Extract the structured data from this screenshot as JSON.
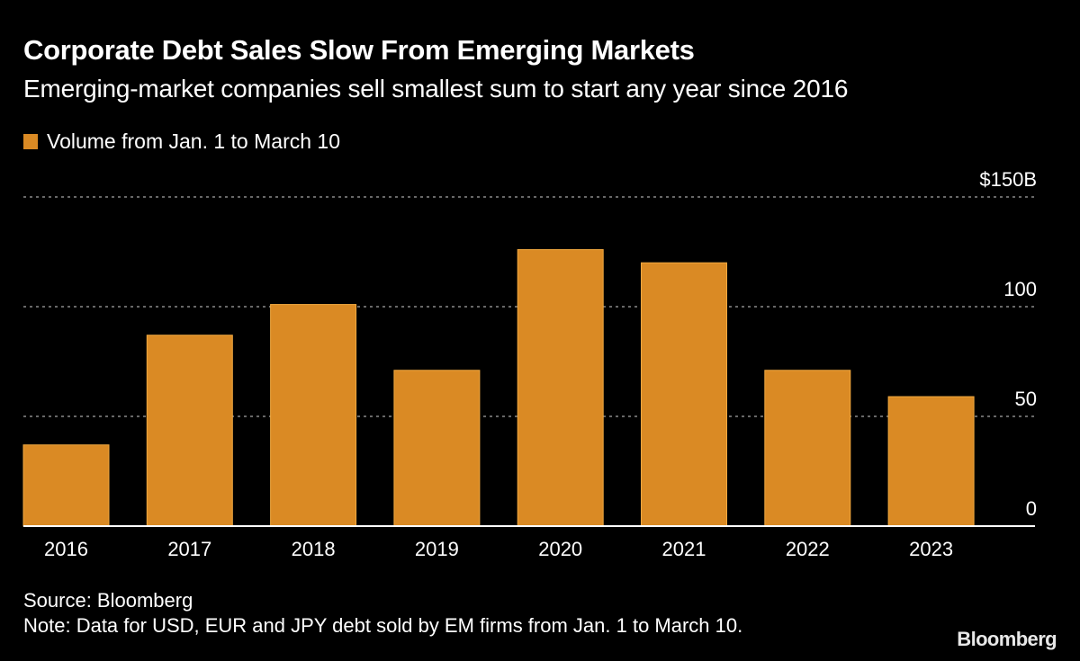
{
  "header": {
    "title": "Corporate Debt Sales Slow From Emerging Markets",
    "subtitle": "Emerging-market companies sell smallest sum to start any year since 2016"
  },
  "colors": {
    "background": "#000000",
    "bar": "#DA8A24",
    "bar_edge": "#F0A840",
    "grid": "#8a8a8a",
    "axis": "#ffffff",
    "text": "#ffffff"
  },
  "footer": {
    "source": "Source: Bloomberg",
    "note": "Note: Data for USD, EUR and JPY debt sold by EM firms from Jan. 1 to March 10.",
    "brand": "Bloomberg"
  },
  "chart_data": {
    "type": "bar",
    "title": "Corporate Debt Sales Slow From Emerging Markets",
    "subtitle": "Emerging-market companies sell smallest sum to start any year since 2016",
    "xlabel": "",
    "ylabel": "",
    "categories": [
      "2016",
      "2017",
      "2018",
      "2019",
      "2020",
      "2021",
      "2022",
      "2023"
    ],
    "series": [
      {
        "name": "Volume from Jan. 1 to March 10",
        "values": [
          37,
          87,
          101,
          71,
          126,
          120,
          71,
          59
        ]
      }
    ],
    "ylim": [
      0,
      150
    ],
    "yticks": [
      0,
      50,
      100,
      150
    ],
    "ytick_labels": [
      "0",
      "50",
      "100",
      "$150B"
    ],
    "y_axis_side": "right",
    "grid": true,
    "grid_style": "dotted",
    "legend_position": "top-left",
    "units": "USD billions"
  }
}
